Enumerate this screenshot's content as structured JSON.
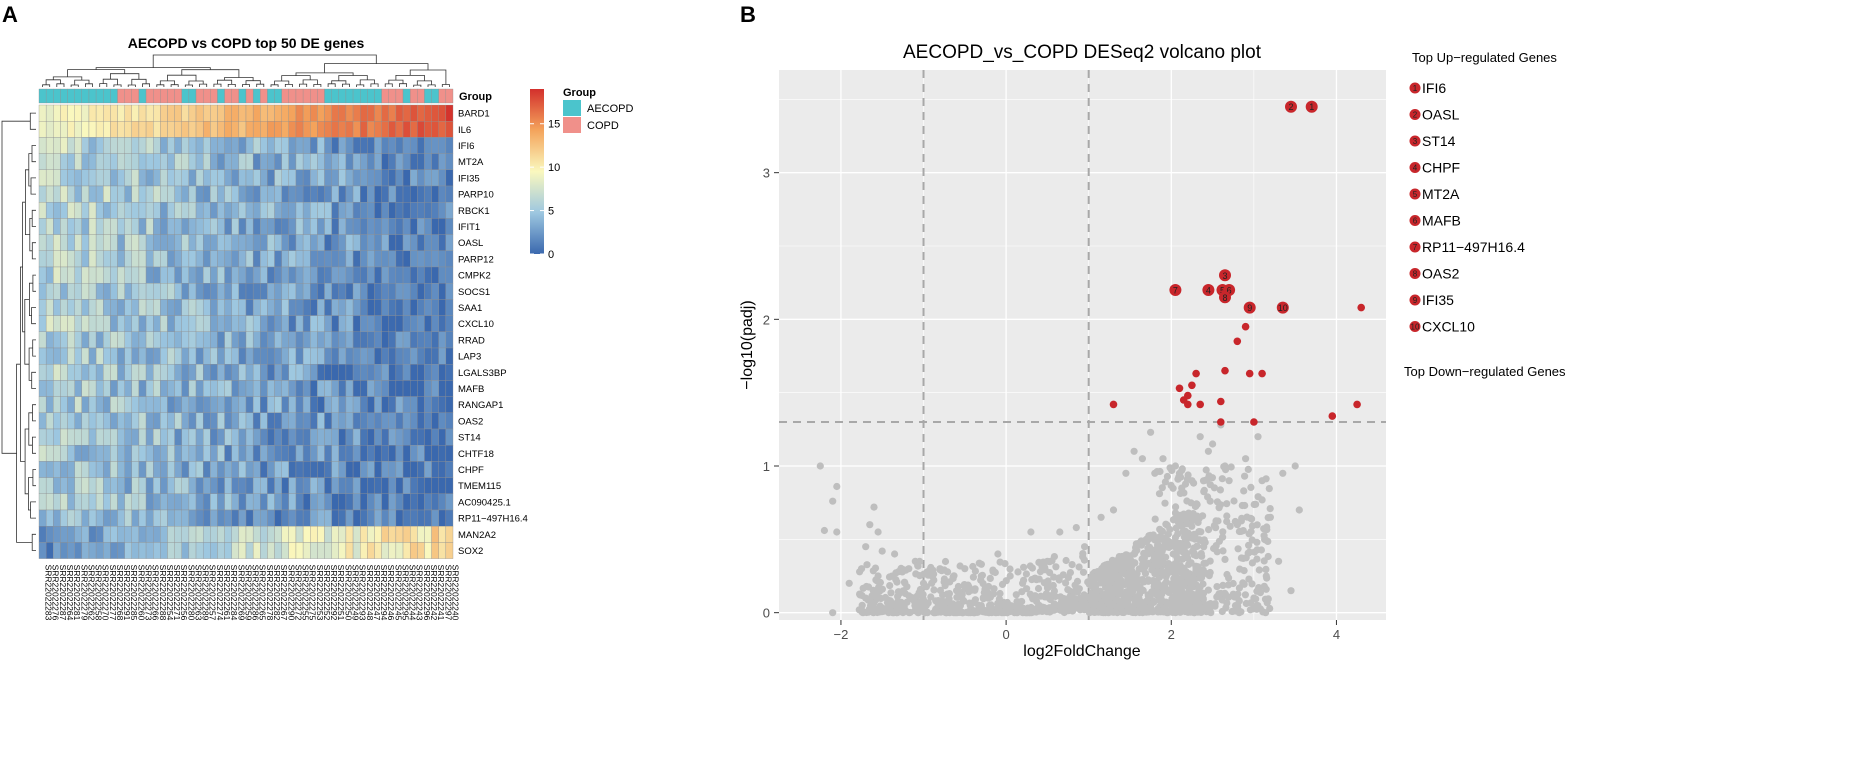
{
  "panels": {
    "a": "A",
    "b": "B"
  },
  "chart_data": [
    {
      "type": "heatmap",
      "title": "AECOPD vs COPD top 50 DE genes",
      "annotation_row_label": "Group",
      "legend_group": {
        "title": "Group",
        "entries": [
          {
            "name": "AECOPD",
            "color": "#4BC4CC"
          },
          {
            "name": "COPD",
            "color": "#F0908A"
          }
        ]
      },
      "color_scale": {
        "ticks": [
          0,
          5,
          10,
          15
        ],
        "stops": [
          "#3A68AE",
          "#FAF8BE",
          "#D3302C"
        ],
        "range": [
          0,
          19
        ]
      },
      "group_sequence": "AAAAAAAAAAACCCACCCCCAACCCACCACACAACCCCCCAAAAAAAACCCACCAACC",
      "genes": [
        "BARD1",
        "IL6",
        "IFI6",
        "MT2A",
        "IFI35",
        "PARP10",
        "RBCK1",
        "IFIT1",
        "OASL",
        "PARP12",
        "CMPK2",
        "SOCS1",
        "SAA1",
        "CXCL10",
        "RRAD",
        "LAP3",
        "LGALS3BP",
        "MAFB",
        "RANGAP1",
        "OAS2",
        "ST14",
        "CHTF18",
        "CHPF",
        "TMEM115",
        "AC090425.1",
        "RP11−497H16.4",
        "MAN2A2",
        "SOX2"
      ],
      "samples": [
        "SRR22022283",
        "SRR22022276",
        "SRR22022287",
        "SRR22022264",
        "SRR22022281",
        "SRR22022279",
        "SRR22022262",
        "SRR22022258",
        "SRR22022270",
        "SRR22022277",
        "SRR22022268",
        "SRR22022291",
        "SRR22022285",
        "SRR22022260",
        "SRR22022273",
        "SRR22022266",
        "SRR22022288",
        "SRR22022254",
        "SRR22022271",
        "SRR22022256",
        "SRR22022280",
        "SRR22022263",
        "SRR22022289",
        "SRR22022257",
        "SRR22022274",
        "SRR22022261",
        "SRR22022284",
        "SRR22022269",
        "SRR22022259",
        "SRR22022286",
        "SRR22022265",
        "SRR22022278",
        "SRR22022282",
        "SRR22022267",
        "SRR22022290",
        "SRR22022272",
        "SRR22022255",
        "SRR22022275",
        "SRR22022253",
        "SRR22022252",
        "SRR22022292",
        "SRR22022251",
        "SRR22022250",
        "SRR22022249",
        "SRR22022293",
        "SRR22022248",
        "SRR22022247",
        "SRR22022294",
        "SRR22022246",
        "SRR22022245",
        "SRR22022295",
        "SRR22022244",
        "SRR22022243",
        "SRR22022296",
        "SRR22022242",
        "SRR22022241",
        "SRR22022297",
        "SRR22022240"
      ]
    },
    {
      "type": "scatter",
      "title": "AECOPD_vs_COPD DESeq2 volcano plot",
      "xlabel": "log2FoldChange",
      "ylabel": "−log10(padj)",
      "xlim": [
        -2.75,
        4.6
      ],
      "ylim": [
        -0.05,
        3.7
      ],
      "xticks": [
        -2,
        0,
        2,
        4
      ],
      "yticks": [
        0,
        1,
        2,
        3
      ],
      "xtick_labels": [
        "−2",
        "0",
        "2",
        "4"
      ],
      "ytick_labels": [
        "0",
        "1",
        "2",
        "3"
      ],
      "vlines": [
        -1,
        1
      ],
      "hline": 1.3,
      "grey_color": "#BEBEBE",
      "red_color": "#C8262B",
      "grey_points": [
        [
          -2.25,
          1.0
        ],
        [
          -2.05,
          0.86
        ],
        [
          -2.1,
          0.76
        ],
        [
          -2.2,
          0.56
        ],
        [
          -2.05,
          0.55
        ],
        [
          -2.1,
          0.0
        ],
        [
          -1.9,
          0.2
        ],
        [
          -1.6,
          0.72
        ],
        [
          -1.65,
          0.6
        ],
        [
          -1.55,
          0.55
        ],
        [
          -1.7,
          0.45
        ],
        [
          -1.75,
          0.3
        ],
        [
          -1.5,
          0.42
        ],
        [
          -1.55,
          0.25
        ],
        [
          -1.35,
          0.4
        ],
        [
          -1.3,
          0.28
        ],
        [
          -1.6,
          0.1
        ],
        [
          -1.4,
          0.08
        ],
        [
          -1.1,
          0.35
        ],
        [
          -1.0,
          0.2
        ],
        [
          -0.8,
          0.3
        ],
        [
          -0.6,
          0.15
        ],
        [
          -0.5,
          0.3
        ],
        [
          -0.3,
          0.25
        ],
        [
          -0.1,
          0.4
        ],
        [
          0.05,
          0.25
        ],
        [
          0.2,
          0.2
        ],
        [
          0.3,
          0.55
        ],
        [
          0.5,
          0.35
        ],
        [
          0.65,
          0.55
        ],
        [
          0.85,
          0.58
        ],
        [
          0.95,
          0.45
        ],
        [
          1.15,
          0.65
        ],
        [
          1.3,
          0.7
        ],
        [
          1.45,
          0.95
        ],
        [
          1.55,
          1.1
        ],
        [
          1.65,
          1.05
        ],
        [
          1.75,
          1.23
        ],
        [
          1.8,
          0.95
        ],
        [
          1.9,
          1.05
        ],
        [
          2.05,
          1.0
        ],
        [
          2.1,
          0.95
        ],
        [
          2.25,
          0.9
        ],
        [
          2.35,
          1.2
        ],
        [
          2.45,
          1.1
        ],
        [
          2.5,
          1.15
        ],
        [
          2.6,
          1.28
        ],
        [
          2.65,
          1.0
        ],
        [
          2.7,
          0.9
        ],
        [
          2.8,
          0.6
        ],
        [
          2.9,
          1.05
        ],
        [
          3.05,
          1.2
        ],
        [
          3.1,
          0.9
        ],
        [
          3.2,
          0.65
        ],
        [
          3.35,
          0.95
        ],
        [
          3.5,
          1.0
        ],
        [
          3.55,
          0.7
        ],
        [
          3.3,
          0.35
        ],
        [
          3.45,
          0.15
        ],
        [
          3.15,
          0.25
        ],
        [
          3.0,
          0.1
        ],
        [
          2.3,
          0.3
        ],
        [
          1.3,
          0.1
        ],
        [
          0.9,
          0.1
        ],
        [
          0.4,
          0.05
        ],
        [
          -0.2,
          0.05
        ],
        [
          -0.7,
          0.05
        ]
      ],
      "red_points": [
        [
          3.45,
          3.45
        ],
        [
          3.7,
          3.45
        ],
        [
          2.65,
          2.3
        ],
        [
          2.05,
          2.2
        ],
        [
          2.45,
          2.2
        ],
        [
          2.6,
          2.2
        ],
        [
          2.7,
          2.2
        ],
        [
          2.65,
          2.15
        ],
        [
          2.95,
          2.08
        ],
        [
          3.35,
          2.08
        ],
        [
          4.3,
          2.08
        ],
        [
          2.9,
          1.95
        ],
        [
          2.8,
          1.85
        ],
        [
          2.65,
          1.65
        ],
        [
          2.3,
          1.63
        ],
        [
          2.95,
          1.63
        ],
        [
          3.1,
          1.63
        ],
        [
          2.1,
          1.53
        ],
        [
          2.25,
          1.55
        ],
        [
          2.2,
          1.48
        ],
        [
          2.15,
          1.45
        ],
        [
          2.6,
          1.44
        ],
        [
          1.3,
          1.42
        ],
        [
          2.2,
          1.42
        ],
        [
          2.35,
          1.42
        ],
        [
          3.0,
          1.3
        ],
        [
          2.6,
          1.3
        ],
        [
          3.95,
          1.34
        ],
        [
          4.25,
          1.42
        ]
      ],
      "labeled_points": [
        {
          "id": "1",
          "x": 3.7,
          "y": 3.45
        },
        {
          "id": "2",
          "x": 3.45,
          "y": 3.45
        },
        {
          "id": "3",
          "x": 2.65,
          "y": 2.3
        },
        {
          "id": "4",
          "x": 2.45,
          "y": 2.2
        },
        {
          "id": "5",
          "x": 2.62,
          "y": 2.2
        },
        {
          "id": "6",
          "x": 2.7,
          "y": 2.2
        },
        {
          "id": "7",
          "x": 2.05,
          "y": 2.2
        },
        {
          "id": "8",
          "x": 2.65,
          "y": 2.15
        },
        {
          "id": "9",
          "x": 2.95,
          "y": 2.08
        },
        {
          "id": "10",
          "x": 3.35,
          "y": 2.08
        }
      ],
      "legend_up_title": "Top Up−regulated Genes",
      "legend_down_title": "Top Down−regulated Genes",
      "up_genes": [
        {
          "id": "1",
          "name": "IFI6"
        },
        {
          "id": "2",
          "name": "OASL"
        },
        {
          "id": "3",
          "name": "ST14"
        },
        {
          "id": "4",
          "name": "CHPF"
        },
        {
          "id": "5",
          "name": "MT2A"
        },
        {
          "id": "6",
          "name": "MAFB"
        },
        {
          "id": "7",
          "name": "RP11−497H16.4"
        },
        {
          "id": "8",
          "name": "OAS2"
        },
        {
          "id": "9",
          "name": "IFI35"
        },
        {
          "id": "10",
          "name": "CXCL10"
        }
      ]
    }
  ]
}
